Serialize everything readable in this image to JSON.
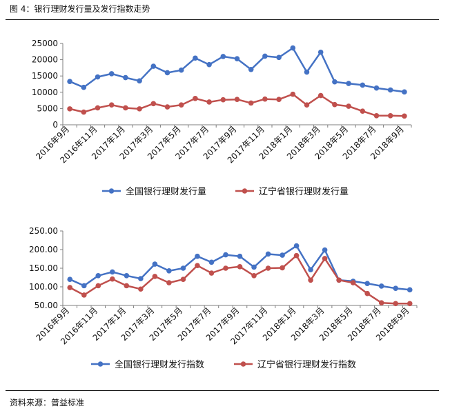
{
  "figure_title": "图 4：银行理财发行量及发行指数走势",
  "source": "资料来源：普益标准",
  "colors": {
    "blue": "#4472C4",
    "red": "#C0504D",
    "axis": "#7f7f7f"
  },
  "chart_data": [
    {
      "type": "line",
      "title": "",
      "xlabel": "",
      "ylabel": "",
      "ylim": [
        0,
        25000
      ],
      "yticks": [
        0,
        5000,
        10000,
        15000,
        20000,
        25000
      ],
      "ytick_labels": [
        "0",
        "5000",
        "10000",
        "15000",
        "20000",
        "25000"
      ],
      "legend_position": "bottom",
      "categories": [
        "2016年9月",
        "2016年10月",
        "2016年11月",
        "2016年12月",
        "2017年1月",
        "2017年2月",
        "2017年3月",
        "2017年4月",
        "2017年5月",
        "2017年6月",
        "2017年7月",
        "2017年8月",
        "2017年9月",
        "2017年10月",
        "2017年11月",
        "2017年12月",
        "2018年1月",
        "2018年2月",
        "2018年3月",
        "2018年4月",
        "2018年5月",
        "2018年6月",
        "2018年7月",
        "2018年8月",
        "2018年9月"
      ],
      "xtick_labels": [
        "2016年9月",
        "2016年11月",
        "2017年1月",
        "2017年3月",
        "2017年5月",
        "2017年7月",
        "2017年9月",
        "2017年11月",
        "2018年1月",
        "2018年3月",
        "2018年5月",
        "2018年7月",
        "2018年9月"
      ],
      "series": [
        {
          "name": "全国银行理财发行量",
          "color": "#4472C4",
          "values": [
            13300,
            11500,
            14700,
            15700,
            14500,
            13500,
            18000,
            16000,
            16800,
            20500,
            18500,
            21000,
            20300,
            17000,
            21100,
            20700,
            23600,
            16200,
            22300,
            13200,
            12700,
            12200,
            11300,
            10700,
            10100
          ]
        },
        {
          "name": "辽宁省银行理财发行量",
          "color": "#C0504D",
          "values": [
            4900,
            3900,
            5200,
            6100,
            5200,
            4900,
            6500,
            5500,
            6100,
            8100,
            7000,
            7700,
            7800,
            6700,
            7900,
            7800,
            9400,
            6100,
            9000,
            6200,
            5700,
            4200,
            2800,
            2800,
            2700
          ]
        }
      ]
    },
    {
      "type": "line",
      "title": "",
      "xlabel": "",
      "ylabel": "",
      "ylim": [
        50,
        250
      ],
      "yticks": [
        50,
        100,
        150,
        200,
        250
      ],
      "ytick_labels": [
        "50.00",
        "100.00",
        "150.00",
        "200.00",
        "250.00"
      ],
      "legend_position": "bottom",
      "categories": [
        "2016年9月",
        "2016年10月",
        "2016年11月",
        "2016年12月",
        "2017年1月",
        "2017年2月",
        "2017年3月",
        "2017年4月",
        "2017年5月",
        "2017年6月",
        "2017年7月",
        "2017年8月",
        "2017年9月",
        "2017年10月",
        "2017年11月",
        "2017年12月",
        "2018年1月",
        "2018年2月",
        "2018年3月",
        "2018年4月",
        "2018年5月",
        "2018年6月",
        "2018年7月",
        "2018年8月",
        "2018年9月"
      ],
      "xtick_labels": [
        "2016年9月",
        "2016年11月",
        "2017年1月",
        "2017年3月",
        "2017年5月",
        "2017年7月",
        "2017年9月",
        "2017年11月",
        "2018年1月",
        "2018年3月",
        "2018年5月",
        "2018年7月",
        "2018年9月"
      ],
      "series": [
        {
          "name": "全国银行理财发行指数",
          "color": "#4472C4",
          "values": [
            120,
            103,
            130,
            140,
            130,
            122,
            161,
            143,
            150,
            182,
            166,
            186,
            182,
            153,
            188,
            185,
            210,
            146,
            199,
            118,
            115,
            109,
            102,
            96,
            92
          ]
        },
        {
          "name": "辽宁省银行理财发行指数",
          "color": "#C0504D",
          "values": [
            98,
            78,
            103,
            121,
            103,
            94,
            128,
            111,
            120,
            157,
            137,
            150,
            154,
            130,
            150,
            151,
            184,
            118,
            176,
            118,
            111,
            82,
            57,
            55,
            55
          ]
        }
      ]
    }
  ]
}
